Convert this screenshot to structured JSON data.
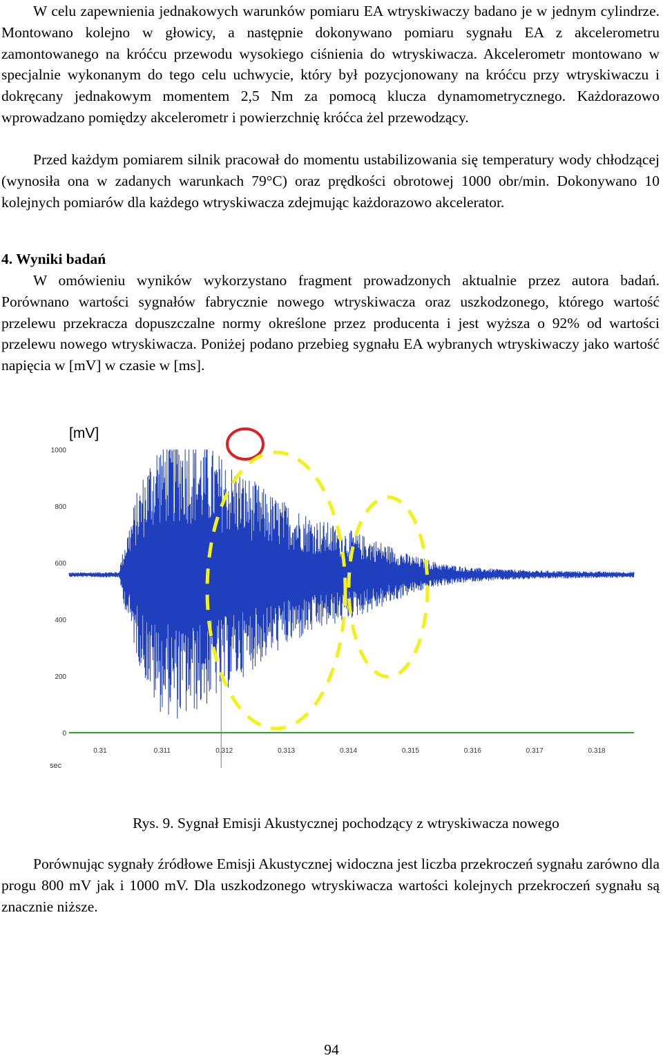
{
  "paragraphs": {
    "p1": "W celu zapewnienia jednakowych warunków pomiaru EA wtryskiwaczy badano je w jednym cylindrze. Montowano kolejno w głowicy, a następnie dokonywano pomiaru sygnału EA z akcelerometru zamontowanego na króćcu przewodu wysokiego ciśnienia do wtryskiwacza. Akcelerometr montowano w specjalnie wykonanym do tego celu uchwycie, który był pozycjonowany na króćcu przy wtryskiwaczu i dokręcany jednakowym momentem 2,5 Nm za pomocą klucza dynamometrycznego. Każdorazowo wprowadzano pomiędzy akcelerometr i powierzchnię króćca żel przewodzący.",
    "p2": "Przed każdym pomiarem silnik pracował do momentu ustabilizowania się temperatury wody chłodzącej (wynosiła ona w zadanych warunkach 79°C) oraz prędkości obrotowej 1000 obr/min. Dokonywano 10 kolejnych pomiarów dla każdego wtryskiwacza zdejmując każdorazowo akcelerator.",
    "heading": "4. Wyniki badań",
    "p3": "W omówieniu wyników wykorzystano fragment prowadzonych aktualnie przez autora badań. Porównano wartości sygnałów fabrycznie nowego wtryskiwacza oraz uszkodzonego, którego wartość przelewu przekracza dopuszczalne normy określone przez producenta i jest wyższa o 92% od wartości przelewu nowego wtryskiwacza. Poniżej podano przebieg sygnału EA wybranych wtryskiwaczy jako wartość napięcia w [mV] w czasie w [ms].",
    "caption": "Rys. 9. Sygnał Emisji Akustycznej pochodzący z wtryskiwacza nowego",
    "p4": "Porównując sygnały źródłowe Emisji Akustycznej widoczna jest liczba przekroczeń sygnału zarówno dla progu 800 mV jak i 1000 mV. Dla uszkodzonego wtryskiwacza wartości kolejnych przekroczeń sygnału są znacznie niższe."
  },
  "page_number": "94",
  "chart_data": {
    "type": "line",
    "ylabel": "[mV]",
    "xlabel": "sec",
    "ylim": [
      0,
      1000
    ],
    "xlim": [
      0.3095,
      0.3186
    ],
    "yticks": [
      "1000",
      "800",
      "600",
      "400",
      "200",
      "0"
    ],
    "xticks": [
      "0.31",
      "0.311",
      "0.312",
      "0.313",
      "0.314",
      "0.315",
      "0.316",
      "0.317",
      "0.318"
    ],
    "baseline_mv": 558,
    "series_color": "#1f3fbf",
    "zero_line_color": "#2aa52a",
    "annotation_colors": {
      "circle": "#e02020",
      "ellipses": "#f2f21a"
    },
    "envelope": [
      {
        "x": 0.3095,
        "amp": 8
      },
      {
        "x": 0.3103,
        "amp": 10
      },
      {
        "x": 0.3104,
        "amp": 120
      },
      {
        "x": 0.3106,
        "amp": 300
      },
      {
        "x": 0.3109,
        "amp": 480
      },
      {
        "x": 0.3113,
        "amp": 520
      },
      {
        "x": 0.3117,
        "amp": 470
      },
      {
        "x": 0.3122,
        "amp": 380
      },
      {
        "x": 0.3128,
        "amp": 280
      },
      {
        "x": 0.3135,
        "amp": 200
      },
      {
        "x": 0.314,
        "amp": 160
      },
      {
        "x": 0.3145,
        "amp": 120
      },
      {
        "x": 0.315,
        "amp": 70
      },
      {
        "x": 0.3155,
        "amp": 40
      },
      {
        "x": 0.316,
        "amp": 25
      },
      {
        "x": 0.317,
        "amp": 15
      },
      {
        "x": 0.3186,
        "amp": 10
      }
    ]
  }
}
